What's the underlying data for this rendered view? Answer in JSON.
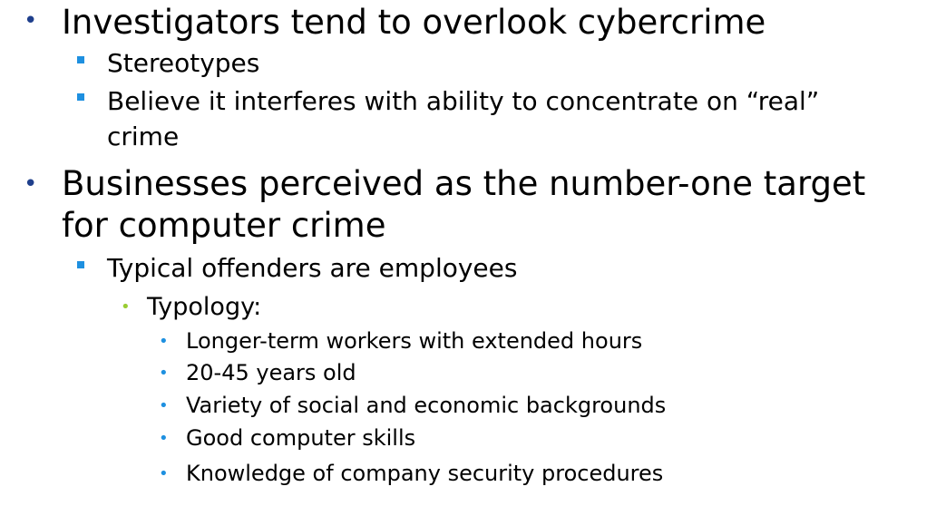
{
  "colors": {
    "level1_bullet": "#1F3F8C",
    "level2_bullet": "#1E90E0",
    "level3_bullet": "#9ACD32",
    "level4_bullet": "#1E90E0"
  },
  "bullets": {
    "level1": "•",
    "level3": "•",
    "level4": "•"
  },
  "items": {
    "b1_line1": "Investigators tend to overlook cybercrime",
    "b1_sub1": "Stereotypes",
    "b1_sub2_line1": "Believe it interferes with ability to concentrate on “real”",
    "b1_sub2_line2": "crime",
    "b2_line1": "Businesses perceived as the number-one target",
    "b2_line2": "for computer crime",
    "b2_sub1": "Typical offenders are employees",
    "b2_sub1_sub1": "Typology:",
    "b2_details": [
      "Longer-term workers with extended hours",
      "20-45 years old",
      "Variety of social and economic backgrounds",
      "Good computer skills",
      "Knowledge of company security procedures"
    ]
  }
}
